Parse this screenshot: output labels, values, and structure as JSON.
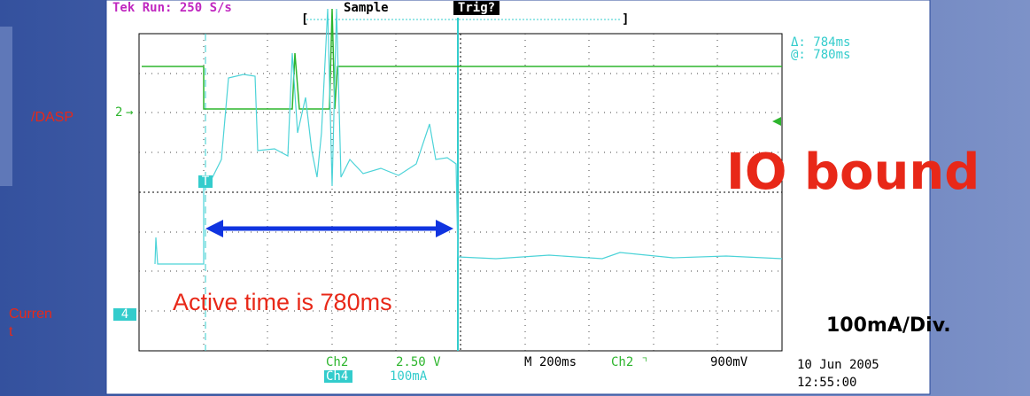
{
  "header": {
    "run": "Tek Run: 250 S/s",
    "mode": "Sample",
    "trigger": "Trig?",
    "bracket_left": "[",
    "bracket_right": "]"
  },
  "readouts": {
    "delta": "Δ: 784ms",
    "at": "@: 780ms"
  },
  "markers": {
    "ch2": "2",
    "ch4": "4",
    "trigger": "T"
  },
  "side_labels": {
    "dasp": "/DASP",
    "current": [
      "Curren",
      "t"
    ]
  },
  "annotations": {
    "io_bound": "IO bound",
    "active_time": "Active time is 780ms",
    "scale": "100mA/Div."
  },
  "footer": {
    "ch2": "Ch2",
    "ch2_scale": "2.50 V",
    "ch4": "Ch4",
    "ch4_scale": "100mA",
    "timebase": "M 200ms",
    "trigger_source": "Ch2 ⌝",
    "trigger_level": "900mV",
    "date": "10 Jun 2005",
    "time": "12:55:00"
  }
}
